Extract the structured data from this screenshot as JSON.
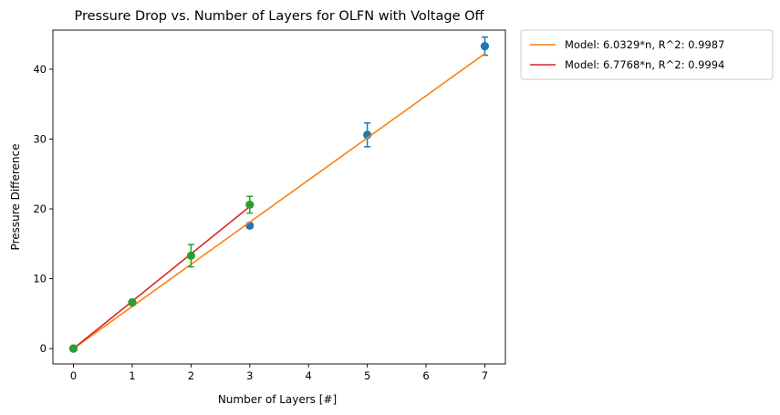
{
  "chart_data": {
    "type": "scatter",
    "title": "Pressure Drop vs. Number of Layers for OLFN with Voltage Off",
    "xlabel": "Number of Layers [#]",
    "ylabel": "Pressure Difference",
    "xlim": [
      -0.35,
      7.35
    ],
    "ylim": [
      -2.2,
      45.6
    ],
    "xticks": [
      0,
      1,
      2,
      3,
      4,
      5,
      6,
      7
    ],
    "yticks": [
      0,
      10,
      20,
      30,
      40
    ],
    "grid": false,
    "legend_position": "outside-right",
    "series": [
      {
        "kind": "errorbar",
        "color": "#1f77b4",
        "x": [
          0,
          1,
          3,
          5,
          7
        ],
        "y": [
          0,
          6.6,
          17.6,
          30.6,
          43.3
        ],
        "err": [
          0,
          0,
          0,
          1.7,
          1.3
        ]
      },
      {
        "kind": "line",
        "name": "Model: 6.0329*n, R^2: 0.9987",
        "color": "#ff7f0e",
        "slope": 6.0329,
        "x": [
          0,
          7
        ]
      },
      {
        "kind": "line",
        "name": "Model: 6.7768*n, R^2: 0.9994",
        "color": "#d62728",
        "slope": 6.7768,
        "x": [
          0,
          3
        ]
      },
      {
        "kind": "errorbar",
        "color": "#2ca02c",
        "x": [
          0,
          1,
          2,
          3
        ],
        "y": [
          0,
          6.6,
          13.3,
          20.6
        ],
        "err": [
          0,
          0,
          1.6,
          1.2
        ]
      }
    ]
  }
}
